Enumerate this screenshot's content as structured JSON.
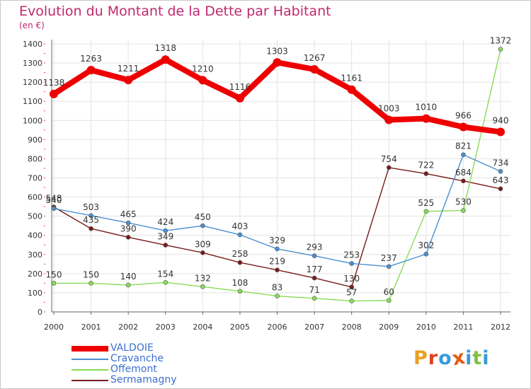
{
  "title": "Evolution du Montant de la Dette par Habitant",
  "unit": "(en €)",
  "logo": {
    "text": "Proxiti",
    "letter_colors": [
      "#e8a020",
      "#e04020",
      "#3a9ad9",
      "#e85a10",
      "#3a9ad9",
      "#80c040",
      "#3a9ad9"
    ]
  },
  "chart_data": {
    "type": "line",
    "x": [
      "2000",
      "2001",
      "2002",
      "2003",
      "2004",
      "2005",
      "2006",
      "2007",
      "2008",
      "2009",
      "2010",
      "2011",
      "2012"
    ],
    "ylim": [
      0,
      1400
    ],
    "yticks": [
      0,
      100,
      200,
      300,
      400,
      500,
      600,
      700,
      800,
      900,
      1000,
      1100,
      1200,
      1300,
      1400
    ],
    "grid": true,
    "legend": "bottom-left",
    "series": [
      {
        "name": "VALDOIE",
        "color": "#ee0000",
        "values": [
          1138,
          1263,
          1211,
          1318,
          1210,
          1116,
          1303,
          1267,
          1161,
          1003,
          1010,
          966,
          940
        ],
        "labels": [
          "1138",
          "1263",
          "1211",
          "1318",
          "1210",
          "1116",
          "1303",
          "1267",
          "1161",
          "1003",
          "1010",
          "966",
          "940"
        ]
      },
      {
        "name": "Cravanche",
        "color": "#4a90d0",
        "values": [
          540,
          503,
          465,
          424,
          450,
          403,
          329,
          293,
          253,
          237,
          302,
          821,
          734
        ],
        "labels": [
          "540",
          "503",
          "465",
          "424",
          "450",
          "403",
          "329",
          "293",
          "253",
          "237",
          "302",
          "821",
          "734"
        ]
      },
      {
        "name": "Offemont",
        "color": "#88dd55",
        "values": [
          150,
          150,
          140,
          154,
          132,
          108,
          83,
          71,
          57,
          60,
          525,
          530,
          1372
        ],
        "labels": [
          "150",
          "150",
          "140",
          "154",
          "132",
          "108",
          "83",
          "71",
          "57",
          "60",
          "525",
          "530",
          "1372"
        ]
      },
      {
        "name": "Sermamagny",
        "color": "#7a1a1a",
        "values": [
          548,
          435,
          390,
          349,
          309,
          258,
          219,
          177,
          130,
          754,
          722,
          684,
          643
        ],
        "labels": [
          "548",
          "435",
          "390",
          "349",
          "309",
          "258",
          "219",
          "177",
          "130",
          "754",
          "722",
          "684",
          "643"
        ]
      }
    ]
  }
}
